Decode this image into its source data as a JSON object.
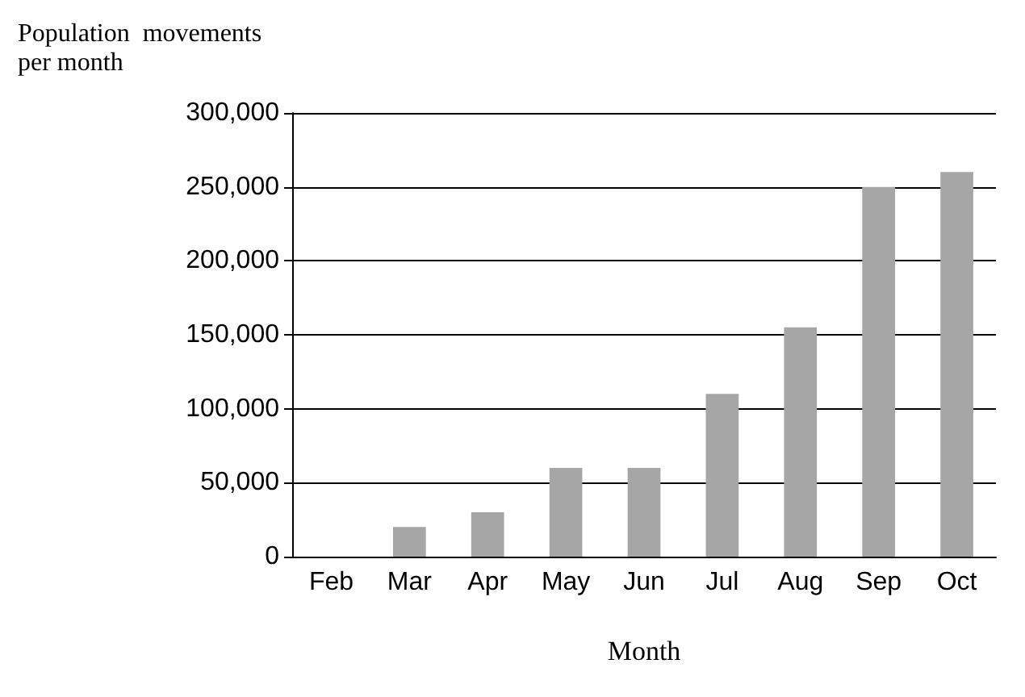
{
  "chart_data": {
    "type": "bar",
    "ylabel": "Population  movements\nper month",
    "xlabel": "Month",
    "categories": [
      "Feb",
      "Mar",
      "Apr",
      "May",
      "Jun",
      "Jul",
      "Aug",
      "Sep",
      "Oct"
    ],
    "values": [
      0,
      20000,
      30000,
      60000,
      60000,
      110000,
      155000,
      250000,
      260000
    ],
    "color": "#a6a6a6",
    "ylim": [
      0,
      300000
    ],
    "yticks": [
      0,
      {
        "value": 50000,
        "label": "50,000"
      },
      {
        "value": 100000,
        "label": "100,000"
      },
      {
        "value": 150000,
        "label": "150,000"
      },
      {
        "value": 200000,
        "label": "200,000"
      },
      {
        "value": 250000,
        "label": "250,000"
      },
      {
        "value": 300000,
        "label": "300,000"
      }
    ],
    "grid": "y"
  }
}
